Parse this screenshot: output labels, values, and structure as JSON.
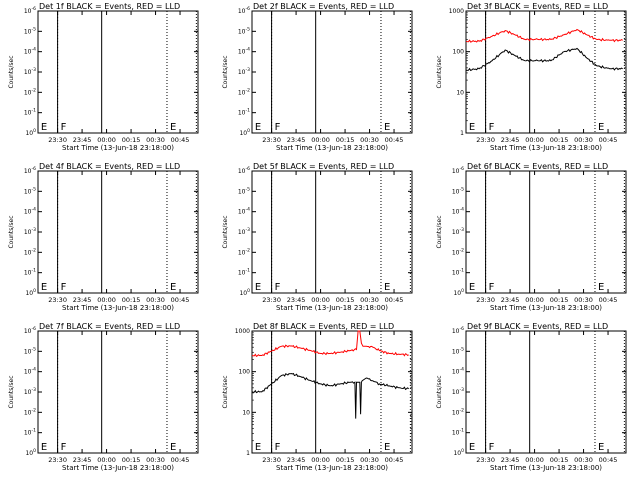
{
  "figure": {
    "background": "#ffffff",
    "axis_color": "#000000",
    "events_color": "#000000",
    "lld_color": "#ff0000"
  },
  "chart_data": [
    {
      "type": "line",
      "title": "Det 1f BLACK = Events, RED = LLD",
      "xlabel": "Start Time (13-Jun-18 23:18:00)",
      "ylabel": "Counts/sec",
      "x_ticks": [
        "23:30",
        "23:45",
        "00:00",
        "00:15",
        "00:30",
        "00:45"
      ],
      "y_ticks": [
        "10^0",
        "10^-1",
        "10^-2",
        "10^-3",
        "10^-4",
        "10^-5",
        "10^-6"
      ],
      "y_scale": "log",
      "xlim_minutes": [
        0,
        98
      ],
      "markers": [
        {
          "label": "E",
          "x_min": 0.5
        },
        {
          "label": "F",
          "x_min": 12
        },
        {
          "label": "E",
          "x_min": 79
        }
      ],
      "vlines": [
        {
          "x_min": 12,
          "style": "dotted"
        },
        {
          "x_min": 12,
          "style": "solid"
        },
        {
          "x_min": 39,
          "style": "solid"
        },
        {
          "x_min": 79,
          "style": "dotted"
        },
        {
          "x_min": 97,
          "style": "dotted"
        }
      ],
      "series": []
    },
    {
      "type": "line",
      "title": "Det 2f BLACK = Events, RED = LLD",
      "xlabel": "Start Time (13-Jun-18 23:18:00)",
      "ylabel": "Counts/sec",
      "x_ticks": [
        "23:30",
        "23:45",
        "00:00",
        "00:15",
        "00:30",
        "00:45"
      ],
      "y_ticks": [
        "10^0",
        "10^-1",
        "10^-2",
        "10^-3",
        "10^-4",
        "10^-5",
        "10^-6"
      ],
      "y_scale": "log",
      "xlim_minutes": [
        0,
        98
      ],
      "markers": [
        {
          "label": "E",
          "x_min": 0.5
        },
        {
          "label": "F",
          "x_min": 12
        },
        {
          "label": "E",
          "x_min": 79
        }
      ],
      "vlines": [
        {
          "x_min": 12,
          "style": "dotted"
        },
        {
          "x_min": 12,
          "style": "solid"
        },
        {
          "x_min": 39,
          "style": "solid"
        },
        {
          "x_min": 79,
          "style": "dotted"
        },
        {
          "x_min": 97,
          "style": "dotted"
        }
      ],
      "series": []
    },
    {
      "type": "line",
      "title": "Det 3f BLACK = Events, RED = LLD",
      "xlabel": "Start Time (13-Jun-18 23:18:00)",
      "ylabel": "Counts/sec",
      "x_ticks": [
        "23:30",
        "23:45",
        "00:00",
        "00:15",
        "00:30",
        "00:45"
      ],
      "y_ticks": [
        "1",
        "10",
        "100",
        "1000"
      ],
      "y_scale": "log",
      "ylim": [
        1,
        1000
      ],
      "xlim_minutes": [
        0,
        98
      ],
      "markers": [
        {
          "label": "E",
          "x_min": 0.5
        },
        {
          "label": "F",
          "x_min": 12
        },
        {
          "label": "E",
          "x_min": 79
        }
      ],
      "vlines": [
        {
          "x_min": 12,
          "style": "dotted"
        },
        {
          "x_min": 12,
          "style": "solid"
        },
        {
          "x_min": 39,
          "style": "solid"
        },
        {
          "x_min": 79,
          "style": "dotted"
        },
        {
          "x_min": 97,
          "style": "dotted"
        }
      ],
      "series": [
        {
          "color": "red",
          "x_min": [
            0,
            8,
            16,
            24,
            30,
            36,
            44,
            52,
            60,
            68,
            74,
            80,
            88,
            96
          ],
          "values": [
            180,
            180,
            240,
            330,
            260,
            200,
            200,
            200,
            260,
            350,
            260,
            200,
            190,
            190
          ]
        },
        {
          "color": "black",
          "x_min": [
            0,
            8,
            16,
            24,
            30,
            36,
            44,
            52,
            60,
            68,
            74,
            80,
            88,
            96
          ],
          "values": [
            35,
            38,
            60,
            110,
            80,
            60,
            60,
            60,
            100,
            120,
            70,
            45,
            38,
            38
          ]
        }
      ]
    },
    {
      "type": "line",
      "title": "Det 4f BLACK = Events, RED = LLD",
      "xlabel": "Start Time (13-Jun-18 23:18:00)",
      "ylabel": "Counts/sec",
      "x_ticks": [
        "23:30",
        "23:45",
        "00:00",
        "00:15",
        "00:30",
        "00:45"
      ],
      "y_ticks": [
        "10^0",
        "10^-1",
        "10^-2",
        "10^-3",
        "10^-4",
        "10^-5",
        "10^-6"
      ],
      "y_scale": "log",
      "xlim_minutes": [
        0,
        98
      ],
      "markers": [
        {
          "label": "E",
          "x_min": 0.5
        },
        {
          "label": "F",
          "x_min": 12
        },
        {
          "label": "E",
          "x_min": 79
        }
      ],
      "vlines": [
        {
          "x_min": 12,
          "style": "dotted"
        },
        {
          "x_min": 12,
          "style": "solid"
        },
        {
          "x_min": 39,
          "style": "solid"
        },
        {
          "x_min": 79,
          "style": "dotted"
        },
        {
          "x_min": 97,
          "style": "dotted"
        }
      ],
      "series": []
    },
    {
      "type": "line",
      "title": "Det 5f BLACK = Events, RED = LLD",
      "xlabel": "Start Time (13-Jun-18 23:18:00)",
      "ylabel": "Counts/sec",
      "x_ticks": [
        "23:30",
        "23:45",
        "00:00",
        "00:15",
        "00:30",
        "00:45"
      ],
      "y_ticks": [
        "10^0",
        "10^-1",
        "10^-2",
        "10^-3",
        "10^-4",
        "10^-5",
        "10^-6"
      ],
      "y_scale": "log",
      "xlim_minutes": [
        0,
        98
      ],
      "markers": [
        {
          "label": "E",
          "x_min": 0.5
        },
        {
          "label": "F",
          "x_min": 12
        },
        {
          "label": "E",
          "x_min": 79
        }
      ],
      "vlines": [
        {
          "x_min": 12,
          "style": "dotted"
        },
        {
          "x_min": 12,
          "style": "solid"
        },
        {
          "x_min": 39,
          "style": "solid"
        },
        {
          "x_min": 79,
          "style": "dotted"
        },
        {
          "x_min": 97,
          "style": "dotted"
        }
      ],
      "series": []
    },
    {
      "type": "line",
      "title": "Det 6f BLACK = Events, RED = LLD",
      "xlabel": "Start Time (13-Jun-18 23:18:00)",
      "ylabel": "Counts/sec",
      "x_ticks": [
        "23:30",
        "23:45",
        "00:00",
        "00:15",
        "00:30",
        "00:45"
      ],
      "y_ticks": [
        "10^0",
        "10^-1",
        "10^-2",
        "10^-3",
        "10^-4",
        "10^-5",
        "10^-6"
      ],
      "y_scale": "log",
      "xlim_minutes": [
        0,
        98
      ],
      "markers": [
        {
          "label": "E",
          "x_min": 0.5
        },
        {
          "label": "F",
          "x_min": 12
        },
        {
          "label": "E",
          "x_min": 79
        }
      ],
      "vlines": [
        {
          "x_min": 12,
          "style": "dotted"
        },
        {
          "x_min": 12,
          "style": "solid"
        },
        {
          "x_min": 39,
          "style": "solid"
        },
        {
          "x_min": 79,
          "style": "dotted"
        },
        {
          "x_min": 97,
          "style": "dotted"
        }
      ],
      "series": []
    },
    {
      "type": "line",
      "title": "Det 7f BLACK = Events, RED = LLD",
      "xlabel": "Start Time (13-Jun-18 23:18:00)",
      "ylabel": "Counts/sec",
      "x_ticks": [
        "23:30",
        "23:45",
        "00:00",
        "00:15",
        "00:30",
        "00:45"
      ],
      "y_ticks": [
        "10^0",
        "10^-1",
        "10^-2",
        "10^-3",
        "10^-4",
        "10^-5",
        "10^-6"
      ],
      "y_scale": "log",
      "xlim_minutes": [
        0,
        98
      ],
      "markers": [
        {
          "label": "E",
          "x_min": 0.5
        },
        {
          "label": "F",
          "x_min": 12
        },
        {
          "label": "E",
          "x_min": 79
        }
      ],
      "vlines": [
        {
          "x_min": 12,
          "style": "dotted"
        },
        {
          "x_min": 12,
          "style": "solid"
        },
        {
          "x_min": 39,
          "style": "solid"
        },
        {
          "x_min": 79,
          "style": "dotted"
        },
        {
          "x_min": 97,
          "style": "dotted"
        }
      ],
      "series": []
    },
    {
      "type": "line",
      "title": "Det 8f BLACK = Events, RED = LLD",
      "xlabel": "Start Time (13-Jun-18 23:18:00)",
      "ylabel": "Counts/sec",
      "x_ticks": [
        "23:30",
        "23:45",
        "00:00",
        "00:15",
        "00:30",
        "00:45"
      ],
      "y_ticks": [
        "1",
        "10",
        "100",
        "1000"
      ],
      "y_scale": "log",
      "ylim": [
        1,
        1000
      ],
      "xlim_minutes": [
        0,
        98
      ],
      "markers": [
        {
          "label": "E",
          "x_min": 0.5
        },
        {
          "label": "F",
          "x_min": 12
        },
        {
          "label": "E",
          "x_min": 79
        }
      ],
      "vlines": [
        {
          "x_min": 12,
          "style": "dotted"
        },
        {
          "x_min": 12,
          "style": "solid"
        },
        {
          "x_min": 39,
          "style": "solid"
        },
        {
          "x_min": 79,
          "style": "dotted"
        },
        {
          "x_min": 97,
          "style": "dotted"
        }
      ],
      "series": [
        {
          "color": "red",
          "x_min": [
            0,
            6,
            12,
            18,
            24,
            30,
            36,
            42,
            48,
            54,
            60,
            64,
            65,
            66,
            67,
            68,
            70,
            74,
            78,
            84,
            90,
            96
          ],
          "values": [
            250,
            250,
            320,
            420,
            430,
            380,
            330,
            280,
            280,
            300,
            330,
            350,
            1000,
            1000,
            500,
            420,
            420,
            400,
            330,
            280,
            270,
            260
          ]
        },
        {
          "color": "black",
          "x_min": [
            0,
            6,
            12,
            18,
            24,
            30,
            36,
            42,
            48,
            54,
            60,
            63,
            63.5,
            64,
            64.5,
            66,
            66.5,
            67,
            67.5,
            70,
            74,
            78,
            84,
            90,
            96
          ],
          "values": [
            32,
            32,
            50,
            80,
            90,
            75,
            60,
            50,
            45,
            50,
            55,
            55,
            7,
            55,
            55,
            55,
            9,
            55,
            60,
            70,
            60,
            50,
            45,
            40,
            38
          ]
        }
      ]
    },
    {
      "type": "line",
      "title": "Det 9f BLACK = Events, RED = LLD",
      "xlabel": "Start Time (13-Jun-18 23:18:00)",
      "ylabel": "Counts/sec",
      "x_ticks": [
        "23:30",
        "23:45",
        "00:00",
        "00:15",
        "00:30",
        "00:45"
      ],
      "y_ticks": [
        "10^0",
        "10^-1",
        "10^-2",
        "10^-3",
        "10^-4",
        "10^-5",
        "10^-6"
      ],
      "y_scale": "log",
      "xlim_minutes": [
        0,
        98
      ],
      "markers": [
        {
          "label": "E",
          "x_min": 0.5
        },
        {
          "label": "F",
          "x_min": 12
        },
        {
          "label": "E",
          "x_min": 79
        }
      ],
      "vlines": [
        {
          "x_min": 12,
          "style": "dotted"
        },
        {
          "x_min": 12,
          "style": "solid"
        },
        {
          "x_min": 39,
          "style": "solid"
        },
        {
          "x_min": 79,
          "style": "dotted"
        },
        {
          "x_min": 97,
          "style": "dotted"
        }
      ],
      "series": []
    }
  ]
}
